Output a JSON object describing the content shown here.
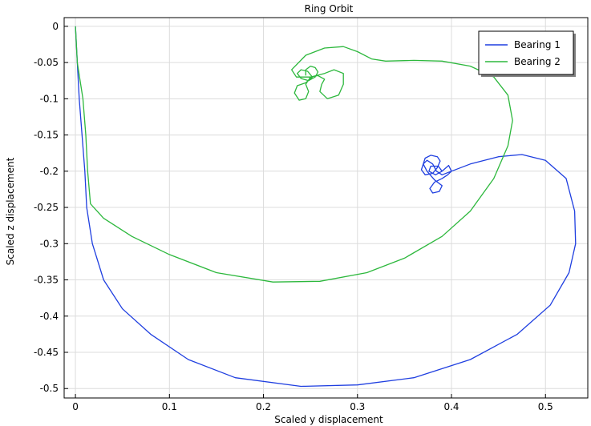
{
  "chart_data": {
    "type": "line",
    "title": "Ring Orbit",
    "xlabel": "Scaled y displacement",
    "ylabel": "Scaled z displacement",
    "xlim": [
      -0.012,
      0.545
    ],
    "ylim": [
      -0.513,
      0.012
    ],
    "x_ticks": [
      0,
      0.1,
      0.2,
      0.3,
      0.4,
      0.5
    ],
    "x_tick_labels": [
      "0",
      "0.1",
      "0.2",
      "0.3",
      "0.4",
      "0.5"
    ],
    "y_ticks": [
      0,
      -0.05,
      -0.1,
      -0.15,
      -0.2,
      -0.25,
      -0.3,
      -0.35,
      -0.4,
      -0.45,
      -0.5
    ],
    "y_tick_labels": [
      "0",
      "-0.05",
      "-0.1",
      "-0.15",
      "-0.2",
      "-0.25",
      "-0.3",
      "-0.35",
      "-0.4",
      "-0.45",
      "-0.5"
    ],
    "grid": true,
    "legend_position": "top-right",
    "series": [
      {
        "name": "Bearing 1",
        "color": "#1f3fe0",
        "points": [
          [
            0.0,
            0.0
          ],
          [
            0.002,
            -0.05
          ],
          [
            0.004,
            -0.1
          ],
          [
            0.007,
            -0.15
          ],
          [
            0.01,
            -0.2
          ],
          [
            0.012,
            -0.25
          ],
          [
            0.018,
            -0.3
          ],
          [
            0.03,
            -0.35
          ],
          [
            0.05,
            -0.39
          ],
          [
            0.08,
            -0.425
          ],
          [
            0.12,
            -0.46
          ],
          [
            0.17,
            -0.485
          ],
          [
            0.24,
            -0.497
          ],
          [
            0.3,
            -0.495
          ],
          [
            0.36,
            -0.485
          ],
          [
            0.42,
            -0.46
          ],
          [
            0.47,
            -0.425
          ],
          [
            0.505,
            -0.385
          ],
          [
            0.525,
            -0.34
          ],
          [
            0.532,
            -0.3
          ],
          [
            0.531,
            -0.255
          ],
          [
            0.522,
            -0.21
          ],
          [
            0.5,
            -0.185
          ],
          [
            0.475,
            -0.177
          ],
          [
            0.45,
            -0.18
          ],
          [
            0.42,
            -0.19
          ],
          [
            0.4,
            -0.2
          ],
          [
            0.39,
            -0.205
          ],
          [
            0.384,
            -0.2
          ],
          [
            0.38,
            -0.19
          ],
          [
            0.374,
            -0.185
          ],
          [
            0.37,
            -0.19
          ],
          [
            0.368,
            -0.198
          ],
          [
            0.372,
            -0.205
          ],
          [
            0.38,
            -0.203
          ],
          [
            0.385,
            -0.195
          ],
          [
            0.388,
            -0.186
          ],
          [
            0.385,
            -0.18
          ],
          [
            0.378,
            -0.178
          ],
          [
            0.372,
            -0.182
          ],
          [
            0.37,
            -0.19
          ],
          [
            0.374,
            -0.2
          ],
          [
            0.382,
            -0.212
          ],
          [
            0.39,
            -0.22
          ],
          [
            0.387,
            -0.228
          ],
          [
            0.38,
            -0.23
          ],
          [
            0.377,
            -0.224
          ],
          [
            0.382,
            -0.215
          ],
          [
            0.39,
            -0.21
          ],
          [
            0.396,
            -0.205
          ],
          [
            0.4,
            -0.2
          ],
          [
            0.397,
            -0.192
          ],
          [
            0.39,
            -0.2
          ],
          [
            0.383,
            -0.205
          ],
          [
            0.376,
            -0.2
          ],
          [
            0.378,
            -0.193
          ],
          [
            0.386,
            -0.193
          ],
          [
            0.39,
            -0.2
          ]
        ]
      },
      {
        "name": "Bearing 2",
        "color": "#2db83d",
        "points": [
          [
            0.0,
            0.0
          ],
          [
            0.002,
            -0.05
          ],
          [
            0.008,
            -0.1
          ],
          [
            0.011,
            -0.15
          ],
          [
            0.013,
            -0.2
          ],
          [
            0.016,
            -0.245
          ],
          [
            0.03,
            -0.265
          ],
          [
            0.06,
            -0.29
          ],
          [
            0.1,
            -0.315
          ],
          [
            0.15,
            -0.34
          ],
          [
            0.21,
            -0.353
          ],
          [
            0.26,
            -0.352
          ],
          [
            0.31,
            -0.34
          ],
          [
            0.35,
            -0.32
          ],
          [
            0.39,
            -0.29
          ],
          [
            0.42,
            -0.255
          ],
          [
            0.445,
            -0.21
          ],
          [
            0.46,
            -0.165
          ],
          [
            0.465,
            -0.13
          ],
          [
            0.46,
            -0.095
          ],
          [
            0.445,
            -0.07
          ],
          [
            0.42,
            -0.055
          ],
          [
            0.39,
            -0.048
          ],
          [
            0.36,
            -0.047
          ],
          [
            0.33,
            -0.048
          ],
          [
            0.315,
            -0.045
          ],
          [
            0.3,
            -0.035
          ],
          [
            0.285,
            -0.028
          ],
          [
            0.265,
            -0.03
          ],
          [
            0.245,
            -0.04
          ],
          [
            0.23,
            -0.06
          ],
          [
            0.235,
            -0.07
          ],
          [
            0.25,
            -0.07
          ],
          [
            0.265,
            -0.065
          ],
          [
            0.275,
            -0.06
          ],
          [
            0.285,
            -0.065
          ],
          [
            0.285,
            -0.08
          ],
          [
            0.28,
            -0.095
          ],
          [
            0.268,
            -0.1
          ],
          [
            0.26,
            -0.09
          ],
          [
            0.262,
            -0.08
          ],
          [
            0.265,
            -0.073
          ],
          [
            0.258,
            -0.068
          ],
          [
            0.25,
            -0.07
          ],
          [
            0.245,
            -0.08
          ],
          [
            0.248,
            -0.09
          ],
          [
            0.245,
            -0.1
          ],
          [
            0.238,
            -0.102
          ],
          [
            0.233,
            -0.092
          ],
          [
            0.236,
            -0.082
          ],
          [
            0.245,
            -0.078
          ],
          [
            0.252,
            -0.07
          ],
          [
            0.247,
            -0.062
          ],
          [
            0.24,
            -0.06
          ],
          [
            0.236,
            -0.065
          ],
          [
            0.24,
            -0.072
          ],
          [
            0.248,
            -0.075
          ],
          [
            0.255,
            -0.07
          ],
          [
            0.258,
            -0.063
          ],
          [
            0.255,
            -0.057
          ],
          [
            0.25,
            -0.055
          ],
          [
            0.245,
            -0.06
          ],
          [
            0.245,
            -0.068
          ]
        ]
      }
    ]
  }
}
